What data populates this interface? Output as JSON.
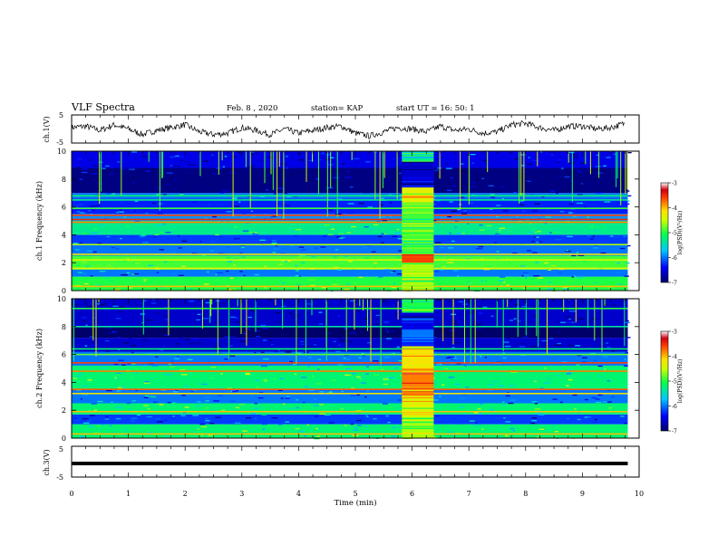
{
  "header": {
    "title": "VLF Spectra",
    "date": "Feb. 8 , 2020",
    "station": "station= KAP",
    "start": "start UT = 16: 50: 1"
  },
  "chart_data": [
    {
      "type": "line",
      "panel": "ch1-waveform",
      "ylabel": "ch.1(V)",
      "ylim": [
        -5,
        5
      ],
      "ytick_labels": [
        "5",
        "-5"
      ],
      "xlim": [
        0,
        9.8
      ],
      "x_units": "min",
      "series": [
        {
          "x": [
            0,
            0.25,
            0.5,
            0.75,
            1.0,
            1.25,
            1.5,
            1.75,
            2.0,
            2.25,
            2.5,
            2.75,
            3.0,
            3.25,
            3.5,
            3.75,
            4.0,
            4.25,
            4.5,
            4.75,
            5.0,
            5.25,
            5.5,
            5.75,
            6.0,
            6.25,
            6.5,
            6.75,
            7.0,
            7.25,
            7.5,
            7.75,
            8.0,
            8.25,
            8.5,
            8.75,
            9.0,
            9.25,
            9.5,
            9.75
          ],
          "y": [
            0.5,
            1.0,
            -0.5,
            1.5,
            0.0,
            -2.0,
            -0.5,
            0.5,
            1.5,
            -1.0,
            -2.0,
            -1.5,
            0.5,
            -0.5,
            -2.0,
            0.0,
            -1.5,
            -0.5,
            0.5,
            1.0,
            -1.5,
            -2.5,
            -1.0,
            0.5,
            0.0,
            -1.0,
            1.0,
            -0.5,
            0.0,
            -1.5,
            -1.0,
            1.5,
            2.0,
            0.5,
            -0.5,
            1.0,
            1.0,
            0.0,
            0.5,
            2.0
          ]
        }
      ]
    },
    {
      "type": "heatmap",
      "panel": "ch1-spectrogram",
      "ylabel": "ch.1 Frequency (kHz)",
      "ylim": [
        0,
        10
      ],
      "ytick_labels": [
        "0",
        "2",
        "4",
        "6",
        "8",
        "10"
      ],
      "xlim": [
        0,
        9.8
      ],
      "colorbar": {
        "label": "log(PSD)(V²/Hz)",
        "range": [
          -7,
          -3
        ],
        "tick_labels": [
          "-3",
          "-4",
          "-5",
          "-6",
          "-7"
        ]
      },
      "bands": [
        {
          "f": [
            0.0,
            1.0
          ],
          "v": -5.0
        },
        {
          "f": [
            1.0,
            1.5
          ],
          "v": -6.0
        },
        {
          "f": [
            1.5,
            2.5
          ],
          "v": -4.9
        },
        {
          "f": [
            2.5,
            3.3
          ],
          "v": -6.0
        },
        {
          "f": [
            3.3,
            4.0
          ],
          "v": -6.2
        },
        {
          "f": [
            4.0,
            5.0
          ],
          "v": -5.3
        },
        {
          "f": [
            5.0,
            5.5
          ],
          "v": -5.9
        },
        {
          "f": [
            5.5,
            6.6
          ],
          "v": -6.3
        },
        {
          "f": [
            6.6,
            7.0
          ],
          "v": -6.0
        },
        {
          "f": [
            7.0,
            8.8
          ],
          "v": -6.9
        },
        {
          "f": [
            8.8,
            10.0
          ],
          "v": -6.5
        }
      ],
      "lines": [
        {
          "f": 0.3,
          "v": -4.0
        },
        {
          "f": 1.6,
          "v": -4.3
        },
        {
          "f": 2.2,
          "v": -4.4
        },
        {
          "f": 2.6,
          "v": -4.2
        },
        {
          "f": 3.3,
          "v": -4.6
        },
        {
          "f": 4.9,
          "v": -3.8
        },
        {
          "f": 5.1,
          "v": -3.5
        },
        {
          "f": 5.4,
          "v": -3.6
        },
        {
          "f": 5.9,
          "v": -4.9
        },
        {
          "f": 6.5,
          "v": -5.3
        },
        {
          "f": 6.8,
          "v": -5.2
        }
      ],
      "burst": {
        "t": [
          5.82,
          6.38
        ],
        "bands": [
          {
            "f": [
              0.0,
              2.0
            ],
            "v": -4.6
          },
          {
            "f": [
              2.0,
              2.6
            ],
            "v": -3.6
          },
          {
            "f": [
              2.6,
              6.2
            ],
            "v": -4.9
          },
          {
            "f": [
              6.2,
              7.4
            ],
            "v": -4.3
          },
          {
            "f": [
              7.4,
              9.3
            ],
            "v": -6.6
          },
          {
            "f": [
              9.3,
              10.0
            ],
            "v": -5.3
          }
        ]
      }
    },
    {
      "type": "heatmap",
      "panel": "ch2-spectrogram",
      "ylabel": "ch.2 Frequency (kHz)",
      "ylim": [
        0,
        10
      ],
      "ytick_labels": [
        "0",
        "2",
        "4",
        "6",
        "8",
        "10"
      ],
      "xlim": [
        0,
        9.8
      ],
      "colorbar": {
        "label": "log(PSD)(V²/Hz)",
        "range": [
          -7,
          -3
        ],
        "tick_labels": [
          "-3",
          "-4",
          "-5",
          "-6",
          "-7"
        ]
      },
      "bands": [
        {
          "f": [
            0.0,
            1.0
          ],
          "v": -5.2
        },
        {
          "f": [
            1.0,
            1.7
          ],
          "v": -6.2
        },
        {
          "f": [
            1.7,
            2.5
          ],
          "v": -5.2
        },
        {
          "f": [
            2.5,
            3.5
          ],
          "v": -6.0
        },
        {
          "f": [
            3.5,
            5.2
          ],
          "v": -5.2
        },
        {
          "f": [
            5.2,
            6.2
          ],
          "v": -6.0
        },
        {
          "f": [
            6.2,
            7.2
          ],
          "v": -6.6
        },
        {
          "f": [
            7.2,
            8.0
          ],
          "v": -7.0
        },
        {
          "f": [
            8.0,
            10.0
          ],
          "v": -6.6
        }
      ],
      "lines": [
        {
          "f": 0.3,
          "v": -4.0
        },
        {
          "f": 1.9,
          "v": -4.0
        },
        {
          "f": 3.2,
          "v": -4.2
        },
        {
          "f": 3.5,
          "v": -3.7
        },
        {
          "f": 4.8,
          "v": -3.8
        },
        {
          "f": 5.4,
          "v": -3.6
        },
        {
          "f": 6.0,
          "v": -4.8
        },
        {
          "f": 6.4,
          "v": -5.2
        },
        {
          "f": 8.0,
          "v": -5.4
        },
        {
          "f": 9.3,
          "v": -5.0
        }
      ],
      "burst": {
        "t": [
          5.82,
          6.38
        ],
        "bands": [
          {
            "f": [
              0.0,
              1.5
            ],
            "v": -4.6
          },
          {
            "f": [
              1.5,
              3.0
            ],
            "v": -4.4
          },
          {
            "f": [
              3.0,
              5.0
            ],
            "v": -3.8
          },
          {
            "f": [
              5.0,
              6.6
            ],
            "v": -4.2
          },
          {
            "f": [
              6.6,
              7.8
            ],
            "v": -6.0
          },
          {
            "f": [
              7.8,
              9.0
            ],
            "v": -6.5
          },
          {
            "f": [
              9.0,
              10.0
            ],
            "v": -5.0
          }
        ]
      }
    },
    {
      "type": "line",
      "panel": "ch3-waveform",
      "ylabel": "ch.3(V)",
      "ylim": [
        -5,
        5
      ],
      "ytick_labels": [
        "5",
        "-5"
      ],
      "xlabel": "Time (min)",
      "xlim": [
        0,
        10
      ],
      "xtick_labels": [
        "0",
        "1",
        "2",
        "3",
        "4",
        "5",
        "6",
        "7",
        "8",
        "9",
        "10"
      ],
      "series": [
        {
          "x": [
            0,
            9.8
          ],
          "y": [
            0,
            0
          ]
        }
      ]
    }
  ]
}
